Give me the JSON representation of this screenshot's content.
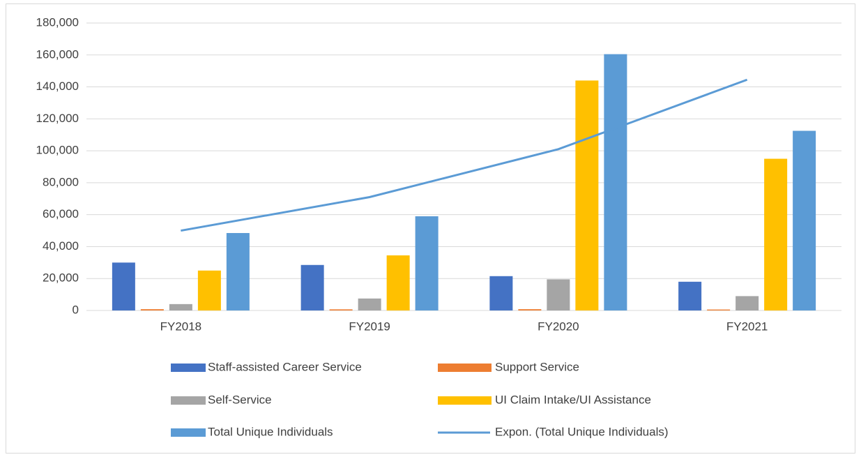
{
  "chart_data": {
    "type": "bar",
    "categories": [
      "FY2018",
      "FY2019",
      "FY2020",
      "FY2021"
    ],
    "series": [
      {
        "name": "Staff-assisted Career Service",
        "color": "#4472c4",
        "values": [
          30000,
          28500,
          21500,
          18000
        ]
      },
      {
        "name": "Support Service",
        "color": "#ed7d31",
        "values": [
          800,
          700,
          800,
          600
        ]
      },
      {
        "name": "Self-Service",
        "color": "#a5a5a5",
        "values": [
          4000,
          7500,
          19500,
          9000
        ]
      },
      {
        "name": "UI Claim Intake/UI Assistance",
        "color": "#ffc000",
        "values": [
          25000,
          34500,
          144000,
          95000
        ]
      },
      {
        "name": "Total Unique Individuals",
        "color": "#5b9bd5",
        "values": [
          48500,
          59000,
          160500,
          112500
        ]
      },
      {
        "name": "Expon. (Total Unique Individuals)",
        "color": "#5b9bd5",
        "type": "line",
        "values": [
          50000,
          71000,
          101000,
          144500
        ]
      }
    ],
    "ylim": [
      0,
      180000
    ],
    "yticks": [
      0,
      {
        "value": 20000,
        "label": "20,000"
      },
      {
        "value": 40000,
        "label": "40,000"
      },
      {
        "value": 60000,
        "label": "60,000"
      },
      {
        "value": 80000,
        "label": "80,000"
      },
      {
        "value": 100000,
        "label": "100,000"
      },
      {
        "value": 120000,
        "label": "120,000"
      },
      {
        "value": 140000,
        "label": "140,000"
      },
      {
        "value": 160000,
        "label": "160,000"
      },
      {
        "value": 180000,
        "label": "180,000"
      }
    ],
    "grid": true,
    "legend": "bottom"
  }
}
